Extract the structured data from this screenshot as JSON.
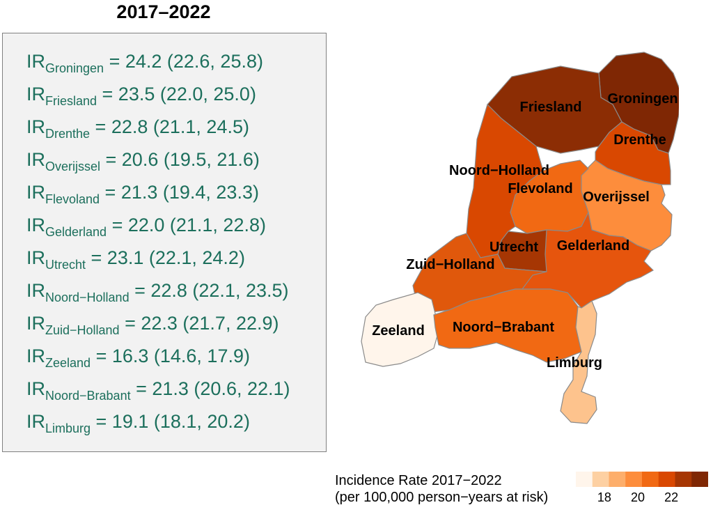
{
  "title": "2017–2022",
  "incidence_rates": [
    {
      "prefix": "IR",
      "province": "Groningen",
      "value": "= 24.2 (22.6, 25.8)"
    },
    {
      "prefix": "IR",
      "province": "Friesland",
      "value": "= 23.5 (22.0, 25.0)"
    },
    {
      "prefix": "IR",
      "province": "Drenthe",
      "value": "= 22.8 (21.1, 24.5)"
    },
    {
      "prefix": "IR",
      "province": "Overijssel",
      "value": "= 20.6 (19.5, 21.6)"
    },
    {
      "prefix": "IR",
      "province": "Flevoland",
      "value": "= 21.3 (19.4, 23.3)"
    },
    {
      "prefix": "IR",
      "province": "Gelderland",
      "value": "= 22.0 (21.1, 22.8)"
    },
    {
      "prefix": "IR",
      "province": "Utrecht",
      "value": "= 23.1 (22.1, 24.2)"
    },
    {
      "prefix": "IR",
      "province": "Noord−Holland",
      "value": "= 22.8 (22.1, 23.5)"
    },
    {
      "prefix": "IR",
      "province": "Zuid−Holland",
      "value": "= 22.3 (21.7, 22.9)"
    },
    {
      "prefix": "IR",
      "province": "Zeeland",
      "value": "= 16.3 (14.6, 17.9)"
    },
    {
      "prefix": "IR",
      "province": "Noord−Brabant",
      "value": "= 21.3 (20.6, 22.1)"
    },
    {
      "prefix": "IR",
      "province": "Limburg",
      "value": "= 19.1 (18.1, 20.2)"
    }
  ],
  "map": {
    "provinces": [
      {
        "name": "Groningen",
        "label": "Groningen",
        "color": "#7f2704"
      },
      {
        "name": "Friesland",
        "label": "Friesland",
        "color": "#8c2d04"
      },
      {
        "name": "Drenthe",
        "label": "Drenthe",
        "color": "#d94801"
      },
      {
        "name": "Overijssel",
        "label": "Overijssel",
        "color": "#fd8d3c"
      },
      {
        "name": "Flevoland",
        "label": "Flevoland",
        "color": "#f16913"
      },
      {
        "name": "Gelderland",
        "label": "Gelderland",
        "color": "#e6550d"
      },
      {
        "name": "Utrecht",
        "label": "Utrecht",
        "color": "#a63603"
      },
      {
        "name": "Noord-Holland",
        "label": "Noord−Holland",
        "color": "#d94801"
      },
      {
        "name": "Zuid-Holland",
        "label": "Zuid−Holland",
        "color": "#e0580c"
      },
      {
        "name": "Zeeland",
        "label": "Zeeland",
        "color": "#fff5eb"
      },
      {
        "name": "Noord-Brabant",
        "label": "Noord−Brabant",
        "color": "#f16913"
      },
      {
        "name": "Limburg",
        "label": "Limburg",
        "color": "#fdc38d"
      }
    ]
  },
  "legend": {
    "title_line1": "Incidence Rate 2017−2022",
    "title_line2": "(per 100,000 person−years at risk)",
    "ticks": [
      "18",
      "20",
      "22"
    ],
    "range": [
      16.3,
      24.2
    ],
    "color_stops": [
      "#fff5eb",
      "#fdd0a2",
      "#fdae6b",
      "#fd8d3c",
      "#f16913",
      "#d94801",
      "#a63603",
      "#7f2704"
    ]
  }
}
